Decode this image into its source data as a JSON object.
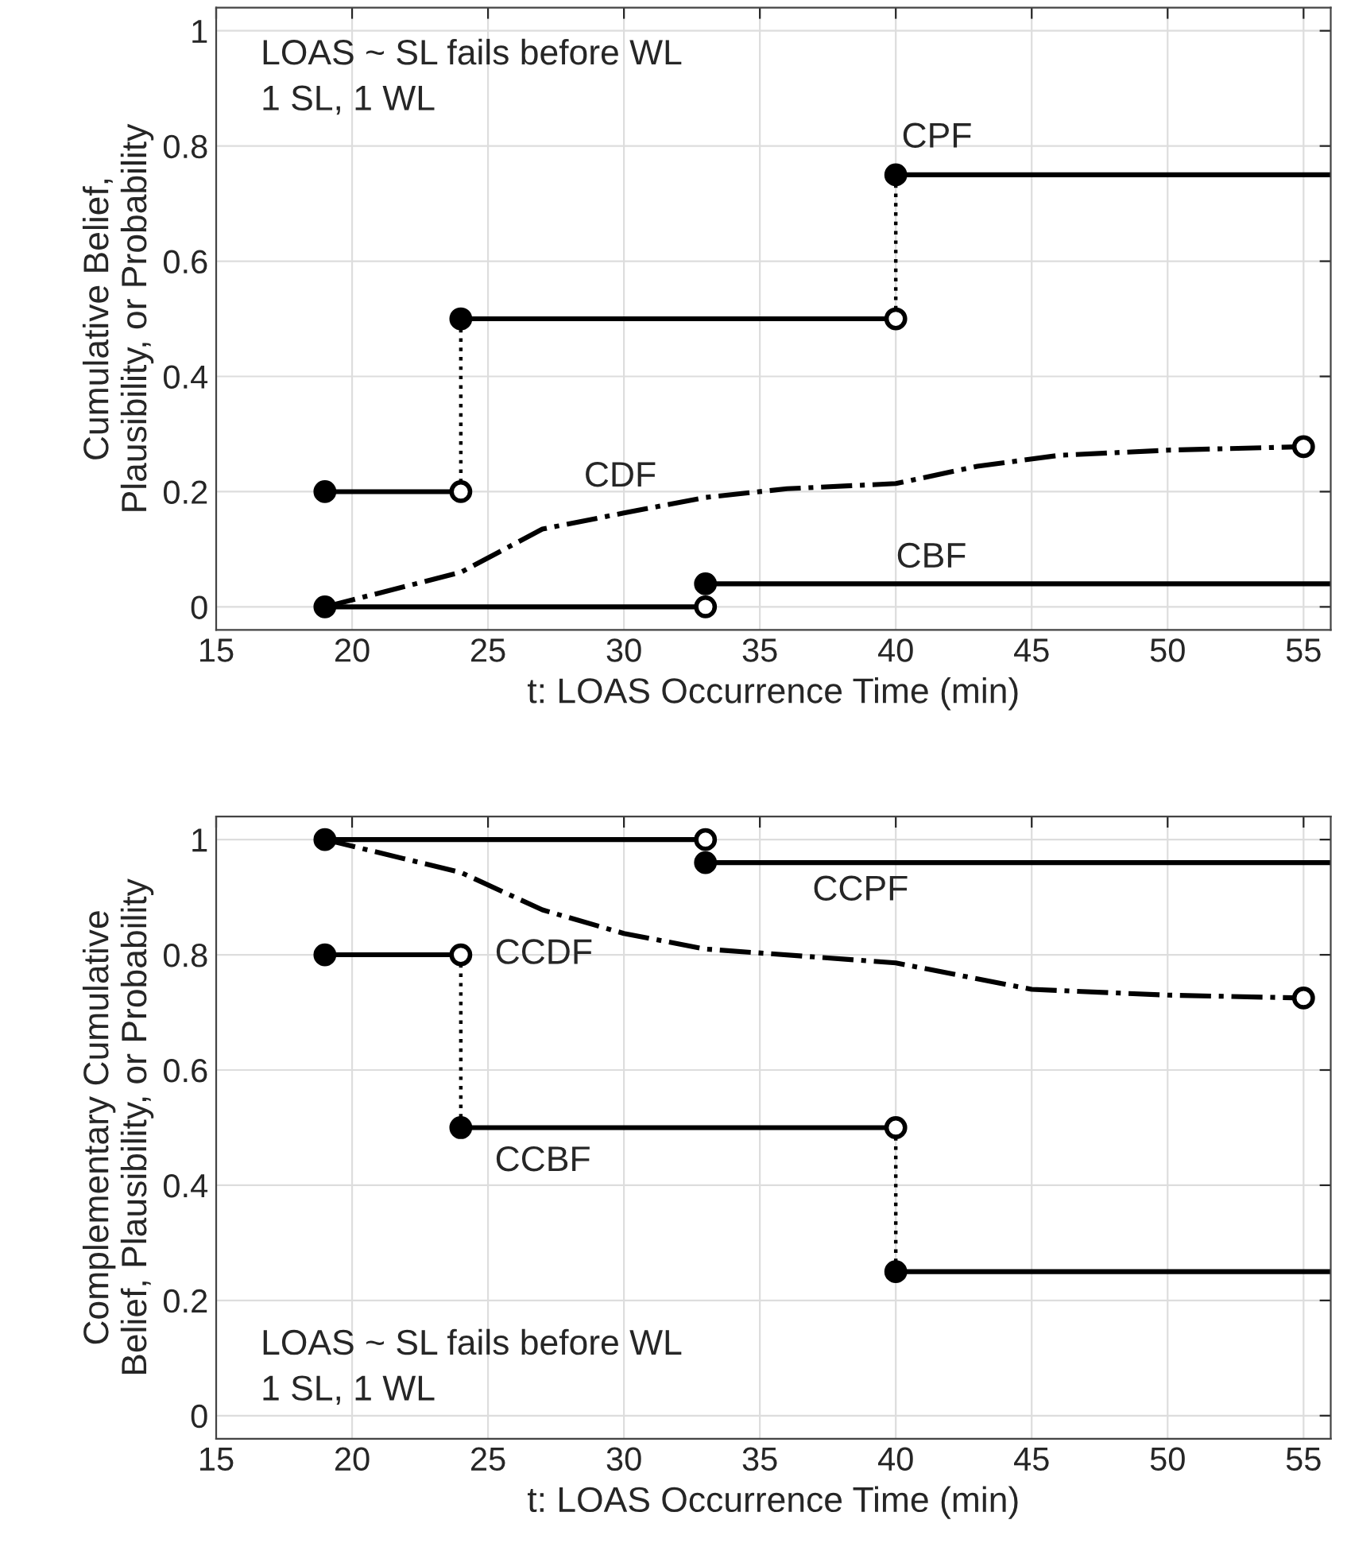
{
  "chart_data": [
    {
      "type": "line",
      "xlabel": "t: LOAS Occurrence Time (min)",
      "ylabel": "Cumulative Belief,\nPlausibility, or Probability",
      "xlim": [
        15,
        56
      ],
      "ylim": [
        -0.04,
        1.04
      ],
      "xticks": [
        15,
        20,
        25,
        30,
        35,
        40,
        45,
        50,
        55
      ],
      "yticks": [
        0,
        0.2,
        0.4,
        0.6,
        0.8,
        1
      ],
      "grid": true,
      "annotations": [
        "LOAS ~ SL fails before WL\n1 SL, 1 WL",
        "CPF",
        "CDF",
        "CBF"
      ],
      "series": [
        {
          "color": "#000000",
          "line_style": "solid",
          "x": [
            19,
            24
          ],
          "values": [
            0.2,
            0.2
          ]
        },
        {
          "color": "#000000",
          "line_style": "solid",
          "x": [
            24,
            40
          ],
          "values": [
            0.5,
            0.5
          ]
        },
        {
          "color": "#000000",
          "line_style": "solid",
          "x": [
            40,
            56
          ],
          "values": [
            0.75,
            0.75
          ]
        },
        {
          "color": "#000000",
          "line_style": "solid",
          "x": [
            19,
            33
          ],
          "values": [
            0,
            0
          ]
        },
        {
          "color": "#000000",
          "line_style": "solid",
          "x": [
            33,
            56
          ],
          "values": [
            0.04,
            0.04
          ]
        },
        {
          "color": "#000000",
          "line_style": "dotted",
          "x": [
            24,
            24
          ],
          "values": [
            0.2,
            0.5
          ]
        },
        {
          "color": "#000000",
          "line_style": "dotted",
          "x": [
            40,
            40
          ],
          "values": [
            0.5,
            0.75
          ]
        },
        {
          "color": "#000000",
          "line_style": "dashdot",
          "x": [
            19,
            24,
            27,
            30,
            33,
            36,
            40,
            43,
            46,
            50,
            55
          ],
          "values": [
            0,
            0.06,
            0.135,
            0.163,
            0.19,
            0.205,
            0.214,
            0.244,
            0.263,
            0.272,
            0.278
          ]
        },
        {
          "type": "scatter",
          "color": "#000000",
          "marker": "circle",
          "x": [
            19,
            24,
            40,
            19,
            33
          ],
          "values": [
            0.2,
            0.5,
            0.75,
            0,
            0.04
          ]
        },
        {
          "type": "scatter",
          "color": "#ffffff",
          "marker": "circle",
          "x": [
            24,
            40,
            33,
            55
          ],
          "values": [
            0.2,
            0.5,
            0,
            0.278
          ]
        }
      ]
    },
    {
      "type": "line",
      "xlabel": "t: LOAS Occurrence Time (min)",
      "ylabel": "Complementary Cumulative\nBelief, Plausibility, or Probability",
      "xlim": [
        15,
        56
      ],
      "ylim": [
        -0.04,
        1.04
      ],
      "xticks": [
        15,
        20,
        25,
        30,
        35,
        40,
        45,
        50,
        55
      ],
      "yticks": [
        0,
        0.2,
        0.4,
        0.6,
        0.8,
        1
      ],
      "grid": true,
      "annotations": [
        "LOAS ~ SL fails before WL\n1 SL, 1 WL",
        "CCPF",
        "CCDF",
        "CCBF"
      ],
      "series": [
        {
          "color": "#000000",
          "line_style": "solid",
          "x": [
            19,
            33
          ],
          "values": [
            1,
            1
          ]
        },
        {
          "color": "#000000",
          "line_style": "solid",
          "x": [
            33,
            56
          ],
          "values": [
            0.96,
            0.96
          ]
        },
        {
          "color": "#000000",
          "line_style": "solid",
          "x": [
            19,
            24
          ],
          "values": [
            0.8,
            0.8
          ]
        },
        {
          "color": "#000000",
          "line_style": "solid",
          "x": [
            24,
            40
          ],
          "values": [
            0.5,
            0.5
          ]
        },
        {
          "color": "#000000",
          "line_style": "solid",
          "x": [
            40,
            56
          ],
          "values": [
            0.25,
            0.25
          ]
        },
        {
          "color": "#000000",
          "line_style": "dotted",
          "x": [
            24,
            24
          ],
          "values": [
            0.8,
            0.5
          ]
        },
        {
          "color": "#000000",
          "line_style": "dotted",
          "x": [
            40,
            40
          ],
          "values": [
            0.5,
            0.25
          ]
        },
        {
          "color": "#000000",
          "line_style": "dashdot",
          "x": [
            19,
            24,
            27,
            30,
            33,
            40,
            45,
            50,
            55
          ],
          "values": [
            1,
            0.943,
            0.878,
            0.837,
            0.81,
            0.786,
            0.74,
            0.73,
            0.725
          ]
        },
        {
          "type": "scatter",
          "color": "#000000",
          "marker": "circle",
          "x": [
            19,
            33,
            19,
            24,
            40
          ],
          "values": [
            1,
            0.96,
            0.8,
            0.5,
            0.25
          ]
        },
        {
          "type": "scatter",
          "color": "#ffffff",
          "marker": "circle",
          "x": [
            33,
            24,
            40,
            55
          ],
          "values": [
            1,
            0.8,
            0.5,
            0.725
          ]
        }
      ]
    }
  ]
}
